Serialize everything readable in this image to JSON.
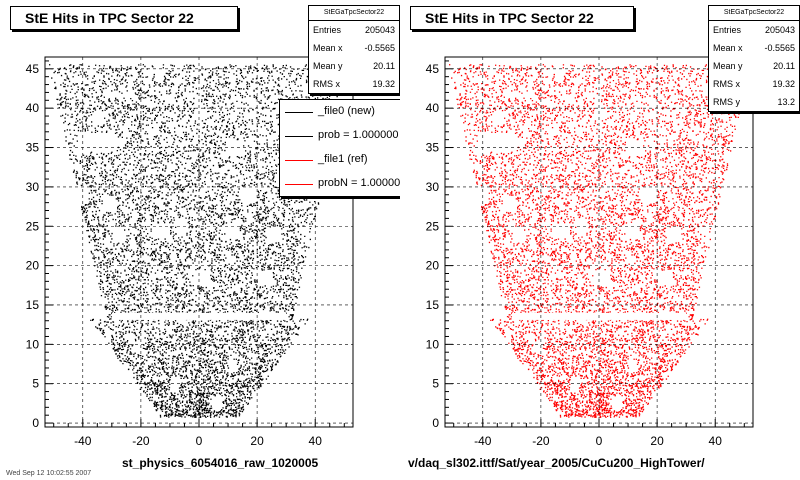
{
  "chart_data": [
    {
      "type": "scatter",
      "title": "StE Hits in TPC Sector 22",
      "xlabel": "st_physics_6054016_raw_1020005",
      "ylabel": "",
      "xlim": [
        -53,
        53
      ],
      "ylim": [
        -0.5,
        46.5
      ],
      "grid": true,
      "marker_color": "#000000",
      "x_ticks": [
        "-40",
        "-20",
        "0",
        "20",
        "40"
      ],
      "y_ticks": [
        "0",
        "5",
        "10",
        "15",
        "20",
        "25",
        "30",
        "35",
        "40",
        "45"
      ],
      "stats": {
        "name": "StEGaTpcSector22",
        "rows": [
          {
            "label": "Entries",
            "value": "205043"
          },
          {
            "label": "Mean x",
            "value": "-0.5565"
          },
          {
            "label": "Mean y",
            "value": "20.11"
          },
          {
            "label": "RMS x",
            "value": "19.32"
          }
        ]
      },
      "legend": {
        "placement": "top-right",
        "entries": [
          {
            "label": "_file0 (new)",
            "color": "#000000"
          },
          {
            "label": "prob = 1.000000",
            "color": "#000000"
          },
          {
            "label": "_file1 (ref)",
            "color": "#ff0000"
          },
          {
            "label": "probN = 1.000000",
            "color": "#ff0000"
          }
        ]
      }
    },
    {
      "type": "scatter",
      "title": "StE Hits in TPC Sector 22",
      "xlabel": "v/daq_sl302.ittf/Sat/year_2005/CuCu200_HighTower/",
      "ylabel": "",
      "xlim": [
        -53,
        53
      ],
      "ylim": [
        -0.5,
        46.5
      ],
      "grid": true,
      "marker_color": "#ff0000",
      "x_ticks": [
        "-40",
        "-20",
        "0",
        "20",
        "40"
      ],
      "y_ticks": [
        "0",
        "5",
        "10",
        "15",
        "20",
        "25",
        "30",
        "35",
        "40",
        "45"
      ],
      "stats": {
        "name": "StEGaTpcSector22",
        "rows": [
          {
            "label": "Entries",
            "value": "205043"
          },
          {
            "label": "Mean x",
            "value": "-0.5565"
          },
          {
            "label": "Mean y",
            "value": "20.11"
          },
          {
            "label": "RMS x",
            "value": "19.32"
          },
          {
            "label": "RMS y",
            "value": "13.2"
          }
        ]
      }
    }
  ],
  "footer": {
    "corner_text": "Wed Sep 12 10:02:55 2007"
  }
}
